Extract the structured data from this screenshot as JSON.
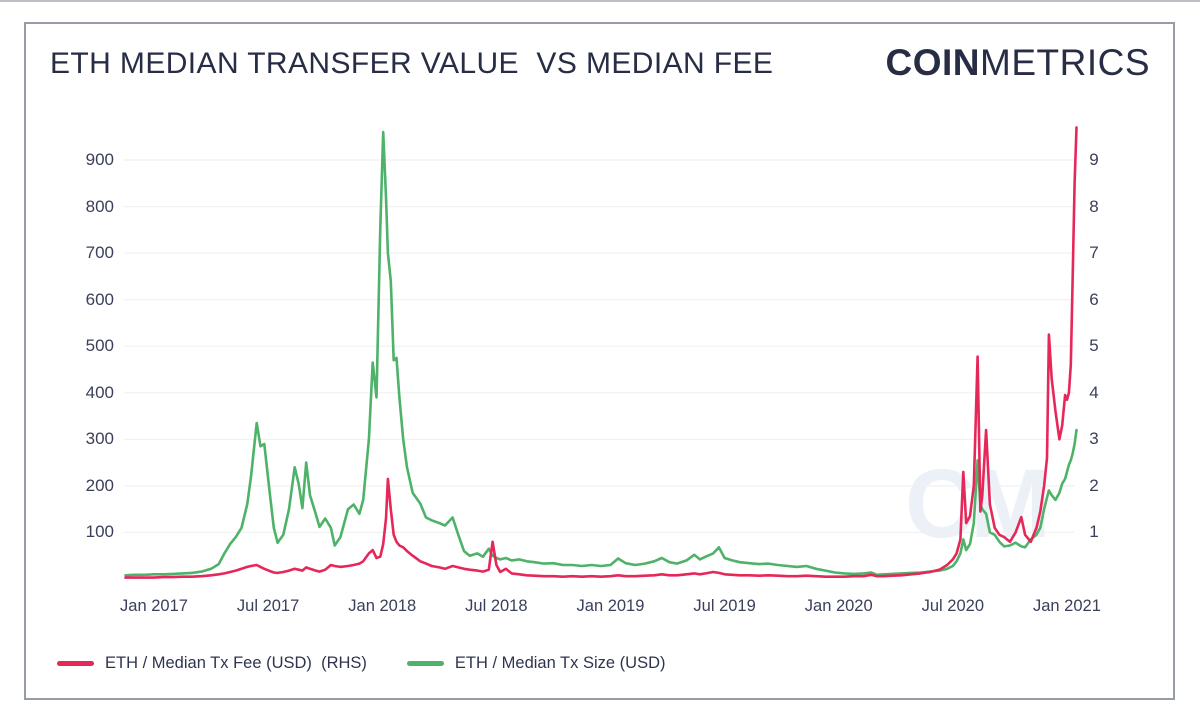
{
  "header": {
    "title": "ETH MEDIAN TRANSFER VALUE  VS MEDIAN FEE",
    "logo_bold": "COIN",
    "logo_light": "METRICS"
  },
  "watermark": "CM",
  "colors": {
    "fee_red": "#e6275a",
    "size_green": "#4eb269",
    "navy_text": "#272d45",
    "axis_text": "#3a405a",
    "gridline": "#f1f1f2",
    "card_border": "#979da4",
    "watermark": "#ecf0f7"
  },
  "chart_data": {
    "type": "line",
    "title": "ETH MEDIAN TRANSFER VALUE  VS MEDIAN FEE",
    "grid": "horizontal",
    "legend_position": "bottom-left",
    "x_unit": "months since Jan 2017",
    "x_tick_months": [
      0,
      6,
      12,
      18,
      24,
      30,
      36,
      42,
      48
    ],
    "x_tick_labels": [
      "Jan 2017",
      "Jul 2017",
      "Jan 2018",
      "Jul 2018",
      "Jan 2019",
      "Jul 2019",
      "Jan 2020",
      "Jul 2020",
      "Jan 2021"
    ],
    "left_axis": {
      "ticks": [
        100,
        200,
        300,
        400,
        500,
        600,
        700,
        800,
        900
      ],
      "range": [
        0,
        975
      ],
      "label": "Median Tx Size (USD)"
    },
    "right_axis": {
      "ticks": [
        1,
        2,
        3,
        4,
        5,
        6,
        7,
        8,
        9
      ],
      "range": [
        0,
        9.75
      ],
      "label": "Median Tx Fee (USD)"
    },
    "x": [
      -1.5,
      -1.0,
      -0.5,
      0.0,
      0.5,
      1.0,
      1.5,
      2.0,
      2.5,
      3.0,
      3.4,
      3.7,
      4.0,
      4.3,
      4.6,
      4.9,
      5.1,
      5.4,
      5.6,
      5.8,
      6.1,
      6.3,
      6.5,
      6.8,
      7.1,
      7.4,
      7.6,
      7.8,
      8.0,
      8.2,
      8.5,
      8.7,
      9.0,
      9.3,
      9.5,
      9.8,
      10.2,
      10.5,
      10.8,
      11.0,
      11.3,
      11.5,
      11.7,
      11.9,
      12.05,
      12.2,
      12.3,
      12.45,
      12.6,
      12.75,
      12.9,
      13.1,
      13.3,
      13.6,
      14.0,
      14.3,
      14.6,
      15.0,
      15.3,
      15.7,
      16.0,
      16.3,
      16.6,
      17.0,
      17.3,
      17.6,
      17.8,
      18.0,
      18.2,
      18.5,
      18.8,
      19.2,
      19.6,
      20.0,
      20.5,
      21.0,
      21.5,
      22.0,
      22.5,
      23.0,
      23.5,
      24.0,
      24.4,
      24.8,
      25.3,
      25.8,
      26.3,
      26.7,
      27.1,
      27.5,
      28.0,
      28.4,
      28.7,
      29.0,
      29.4,
      29.7,
      30.0,
      30.4,
      30.8,
      31.3,
      31.8,
      32.3,
      32.8,
      33.3,
      33.8,
      34.3,
      34.8,
      35.3,
      35.8,
      36.3,
      36.8,
      37.3,
      37.7,
      38.0,
      38.4,
      38.8,
      39.3,
      39.8,
      40.3,
      40.8,
      41.3,
      41.7,
      42.0,
      42.2,
      42.4,
      42.55,
      42.7,
      42.9,
      43.1,
      43.3,
      43.45,
      43.55,
      43.75,
      43.95,
      44.2,
      44.45,
      44.7,
      45.0,
      45.3,
      45.6,
      45.8,
      46.1,
      46.4,
      46.6,
      46.8,
      46.95,
      47.05,
      47.2,
      47.4,
      47.6,
      47.75,
      47.9,
      48.0,
      48.1,
      48.2,
      48.3,
      48.4,
      48.5
    ],
    "series": [
      {
        "name": "ETH / Median Tx Fee (USD)  (RHS)",
        "axis": "right",
        "color": "#e6275a",
        "values": [
          0.03,
          0.03,
          0.03,
          0.03,
          0.04,
          0.04,
          0.05,
          0.05,
          0.06,
          0.08,
          0.1,
          0.12,
          0.15,
          0.18,
          0.22,
          0.26,
          0.28,
          0.3,
          0.26,
          0.22,
          0.17,
          0.14,
          0.13,
          0.15,
          0.18,
          0.22,
          0.2,
          0.18,
          0.25,
          0.22,
          0.18,
          0.16,
          0.2,
          0.3,
          0.28,
          0.26,
          0.28,
          0.3,
          0.33,
          0.38,
          0.55,
          0.62,
          0.45,
          0.48,
          0.75,
          1.3,
          2.15,
          1.5,
          0.95,
          0.8,
          0.72,
          0.68,
          0.6,
          0.5,
          0.38,
          0.33,
          0.28,
          0.25,
          0.22,
          0.28,
          0.25,
          0.22,
          0.2,
          0.18,
          0.16,
          0.2,
          0.8,
          0.3,
          0.15,
          0.22,
          0.12,
          0.1,
          0.08,
          0.07,
          0.06,
          0.06,
          0.05,
          0.06,
          0.05,
          0.06,
          0.05,
          0.06,
          0.08,
          0.06,
          0.06,
          0.07,
          0.08,
          0.1,
          0.08,
          0.08,
          0.1,
          0.12,
          0.1,
          0.12,
          0.15,
          0.13,
          0.1,
          0.09,
          0.08,
          0.08,
          0.07,
          0.08,
          0.07,
          0.06,
          0.06,
          0.07,
          0.06,
          0.05,
          0.05,
          0.05,
          0.06,
          0.06,
          0.09,
          0.06,
          0.06,
          0.07,
          0.08,
          0.1,
          0.12,
          0.15,
          0.2,
          0.3,
          0.42,
          0.55,
          0.85,
          2.3,
          1.2,
          1.35,
          2.0,
          4.78,
          1.45,
          1.8,
          3.2,
          1.6,
          1.1,
          0.95,
          0.9,
          0.8,
          1.0,
          1.33,
          0.95,
          0.8,
          1.1,
          1.45,
          2.0,
          2.6,
          5.25,
          4.3,
          3.6,
          3.0,
          3.3,
          3.95,
          3.85,
          4.0,
          4.6,
          6.5,
          8.5,
          9.7
        ]
      },
      {
        "name": "ETH / Median Tx Size (USD)",
        "axis": "left",
        "color": "#4eb269",
        "values": [
          8,
          9,
          9,
          10,
          10,
          11,
          12,
          13,
          16,
          22,
          32,
          55,
          75,
          90,
          110,
          160,
          220,
          335,
          285,
          290,
          180,
          110,
          78,
          95,
          150,
          240,
          205,
          152,
          250,
          180,
          140,
          112,
          130,
          110,
          72,
          90,
          150,
          160,
          140,
          170,
          300,
          465,
          390,
          755,
          960,
          820,
          700,
          640,
          470,
          475,
          390,
          300,
          240,
          185,
          162,
          132,
          126,
          120,
          115,
          132,
          95,
          60,
          50,
          55,
          48,
          65,
          50,
          45,
          42,
          45,
          40,
          42,
          38,
          36,
          33,
          34,
          30,
          30,
          28,
          30,
          28,
          30,
          44,
          34,
          30,
          33,
          38,
          45,
          36,
          33,
          40,
          52,
          42,
          48,
          55,
          68,
          45,
          40,
          36,
          34,
          32,
          33,
          30,
          28,
          26,
          28,
          22,
          18,
          14,
          12,
          11,
          12,
          14,
          9,
          10,
          11,
          12,
          13,
          14,
          16,
          18,
          22,
          28,
          38,
          55,
          85,
          62,
          75,
          120,
          255,
          160,
          150,
          140,
          100,
          95,
          80,
          70,
          72,
          78,
          70,
          68,
          85,
          95,
          110,
          150,
          175,
          190,
          180,
          170,
          185,
          205,
          215,
          230,
          245,
          255,
          270,
          290,
          320
        ]
      }
    ]
  }
}
